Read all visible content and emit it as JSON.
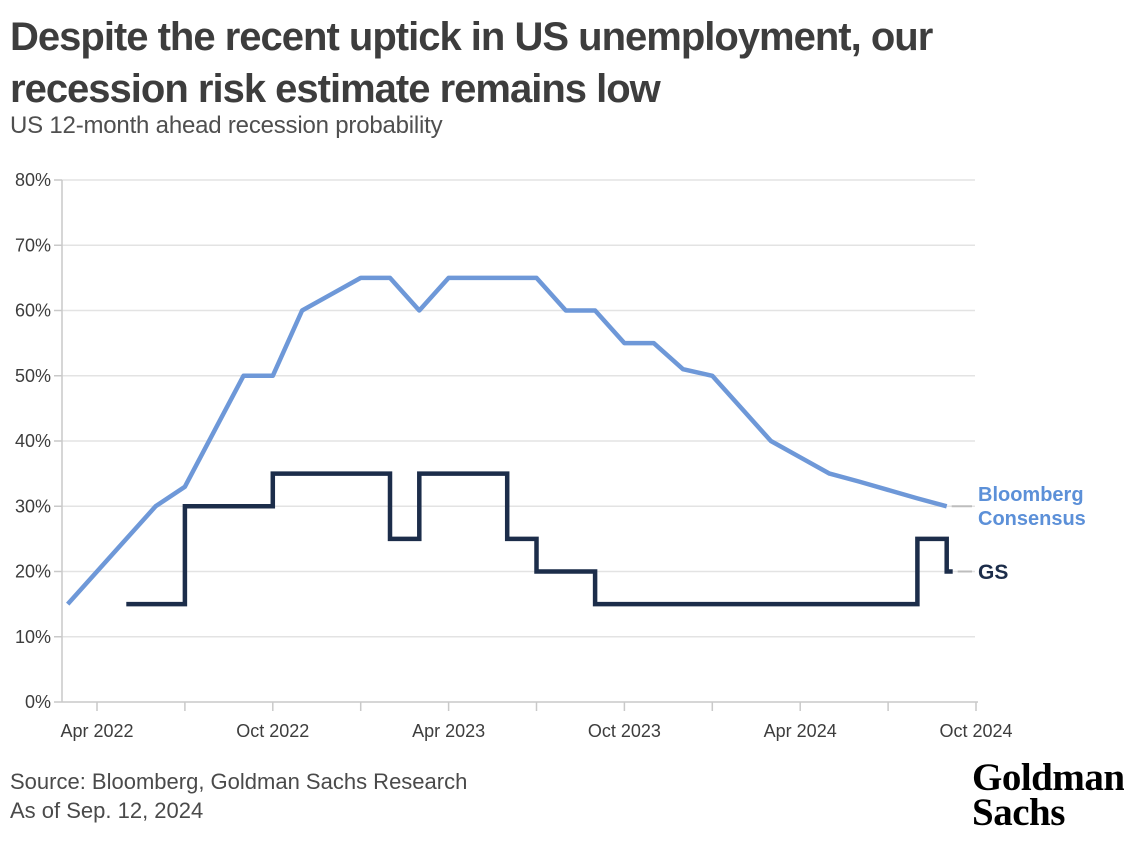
{
  "header": {
    "title": "Despite the recent uptick in US unemployment, our\nrecession risk estimate remains low",
    "subtitle": "US 12-month ahead recession probability"
  },
  "footer": {
    "source": "Source: Bloomberg, Goldman Sachs Research",
    "as_of": "As of Sep. 12, 2024",
    "logo": {
      "line1": "Goldman",
      "line2": "Sachs"
    }
  },
  "colors": {
    "bloomberg_line": "#6E98D8",
    "bloomberg_label": "#5C90D8",
    "gs": "#1C2D4A",
    "grid": "#E3E3E3",
    "axis": "#C9C9C9",
    "tick_label": "#3D3D3D",
    "connector": "#BDBDBD",
    "title": "#3D3D3D",
    "subtitle": "#4F4F4F",
    "source_text": "#4A4A4A"
  },
  "chart_data": {
    "type": "line",
    "title": "US 12-month ahead recession probability",
    "unit": "percent",
    "ylim": [
      0,
      80
    ],
    "y_tick_labels": [
      "0%",
      "10%",
      "20%",
      "30%",
      "40%",
      "50%",
      "60%",
      "70%",
      "80%"
    ],
    "x_tick_labels": [
      "Apr 2022",
      "Oct 2022",
      "Apr 2023",
      "Oct 2023",
      "Apr 2024",
      "Oct 2024"
    ],
    "x_minor_tick_every_months": 3,
    "grid": "horizontal",
    "legend_position": "right-of-line-ends",
    "series": [
      {
        "name": "Bloomberg Consensus",
        "line_style": "line",
        "points": [
          {
            "d": "Mar 2022",
            "v": 15
          },
          {
            "d": "Apr 2022",
            "v": 20
          },
          {
            "d": "May 2022",
            "v": 25
          },
          {
            "d": "Jun 2022",
            "v": 30
          },
          {
            "d": "Jul 2022",
            "v": 33
          },
          {
            "d": "Aug 2022",
            "v": 41.5
          },
          {
            "d": "Sep 2022",
            "v": 50
          },
          {
            "d": "Oct 2022",
            "v": 50
          },
          {
            "d": "Nov 2022",
            "v": 60
          },
          {
            "d": "Dec 2022",
            "v": 62.5
          },
          {
            "d": "Jan 2023",
            "v": 65
          },
          {
            "d": "Feb 2023",
            "v": 65
          },
          {
            "d": "Mar 2023",
            "v": 60
          },
          {
            "d": "Apr 2023",
            "v": 65
          },
          {
            "d": "May 2023",
            "v": 65
          },
          {
            "d": "Jun 2023",
            "v": 65
          },
          {
            "d": "Jul 2023",
            "v": 65
          },
          {
            "d": "Aug 2023",
            "v": 60
          },
          {
            "d": "Sep 2023",
            "v": 60
          },
          {
            "d": "Oct 2023",
            "v": 55
          },
          {
            "d": "Nov 2023",
            "v": 55
          },
          {
            "d": "Dec 2023",
            "v": 51
          },
          {
            "d": "Jan 2024",
            "v": 50
          },
          {
            "d": "Feb 2024",
            "v": 45
          },
          {
            "d": "Mar 2024",
            "v": 40
          },
          {
            "d": "Apr 2024",
            "v": 37.5
          },
          {
            "d": "May 2024",
            "v": 35
          },
          {
            "d": "Jun 2024",
            "v": 33.8
          },
          {
            "d": "Jul 2024",
            "v": 32.5
          },
          {
            "d": "Aug 2024",
            "v": 31.2
          },
          {
            "d": "Sep 2024",
            "v": 30
          }
        ]
      },
      {
        "name": "GS",
        "line_style": "step",
        "points": [
          {
            "d": "May 2022",
            "v": 15
          },
          {
            "d": "Jun 2022",
            "v": 15
          },
          {
            "d": "Jul 2022",
            "v": 30
          },
          {
            "d": "Aug 2022",
            "v": 30
          },
          {
            "d": "Sep 2022",
            "v": 30
          },
          {
            "d": "Oct 2022",
            "v": 35
          },
          {
            "d": "Nov 2022",
            "v": 35
          },
          {
            "d": "Dec 2022",
            "v": 35
          },
          {
            "d": "Jan 2023",
            "v": 35
          },
          {
            "d": "Feb 2023",
            "v": 25
          },
          {
            "d": "Mar 2023",
            "v": 35
          },
          {
            "d": "Apr 2023",
            "v": 35
          },
          {
            "d": "May 2023",
            "v": 35
          },
          {
            "d": "Jun 2023",
            "v": 25
          },
          {
            "d": "Jul 2023",
            "v": 20
          },
          {
            "d": "Aug 2023",
            "v": 20
          },
          {
            "d": "Sep 2023",
            "v": 15
          },
          {
            "d": "Oct 2023",
            "v": 15
          },
          {
            "d": "Nov 2023",
            "v": 15
          },
          {
            "d": "Dec 2023",
            "v": 15
          },
          {
            "d": "Jan 2024",
            "v": 15
          },
          {
            "d": "Feb 2024",
            "v": 15
          },
          {
            "d": "Mar 2024",
            "v": 15
          },
          {
            "d": "Apr 2024",
            "v": 15
          },
          {
            "d": "May 2024",
            "v": 15
          },
          {
            "d": "Jun 2024",
            "v": 15
          },
          {
            "d": "Jul 2024",
            "v": 15
          },
          {
            "d": "Aug 2024",
            "v": 25
          },
          {
            "d": "Sep 2024",
            "v": 20
          }
        ]
      }
    ]
  }
}
